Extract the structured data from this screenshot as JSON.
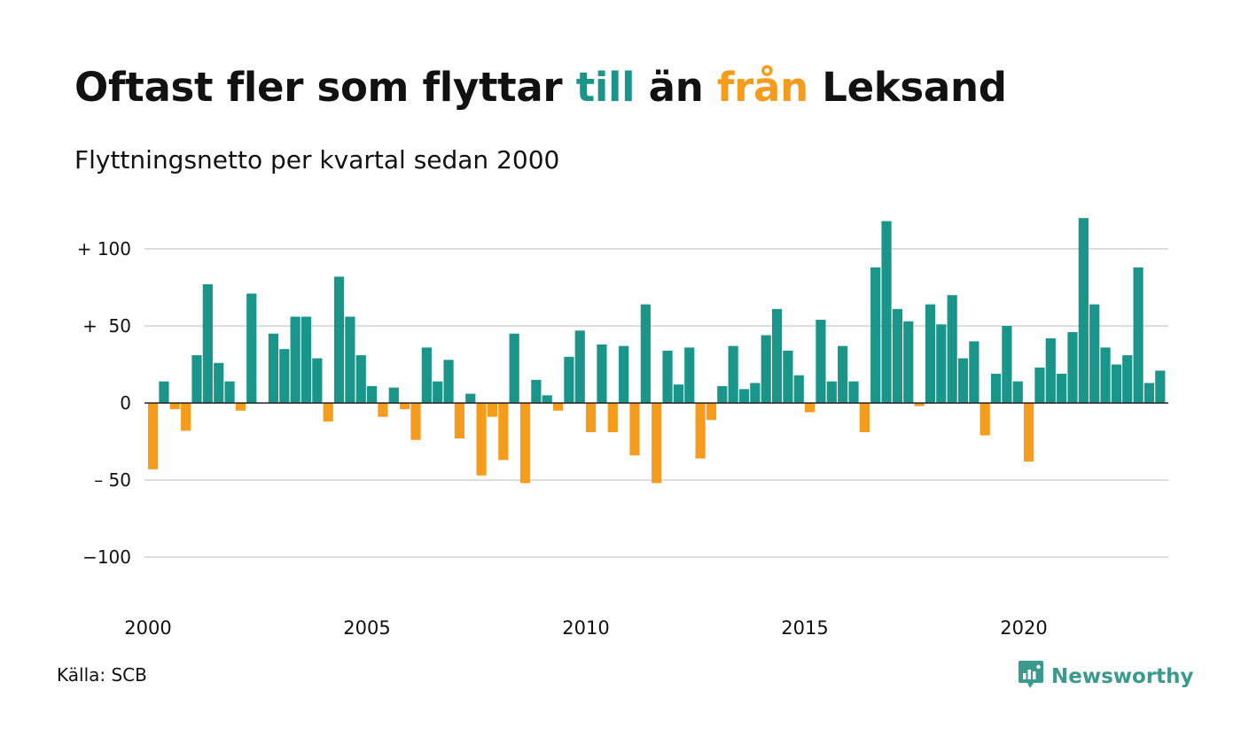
{
  "title": {
    "part1": "Oftast fler som flyttar ",
    "word_in": "till",
    "part2": " än ",
    "word_out": "från",
    "part3": " Leksand"
  },
  "subtitle": "Flyttningsnetto per kvartal sedan 2000",
  "source": "Källa: SCB",
  "brand": {
    "name": "Newsworthy",
    "color": "#3a9a8d",
    "icon": "newsworthy-logo-icon"
  },
  "colors": {
    "positive": "#1a9589",
    "negative": "#f59c1d",
    "grid": "#dddddd",
    "zero_line": "#222222",
    "text": "#111111"
  },
  "chart_data": {
    "type": "bar",
    "title": "Oftast fler som flyttar till än från Leksand",
    "subtitle": "Flyttningsnetto per kvartal sedan 2000",
    "start": "2000 Q1",
    "frequency": "quarterly",
    "x_ticks": [
      "2000",
      "2005",
      "2010",
      "2015",
      "2020"
    ],
    "y_ticks": [
      {
        "value": 100,
        "label": "+ 100"
      },
      {
        "value": 50,
        "label": "+  50"
      },
      {
        "value": 0,
        "label": "0"
      },
      {
        "value": -50,
        "label": "– 50"
      },
      {
        "value": -100,
        "label": "−100"
      }
    ],
    "ylim": [
      -130,
      128
    ],
    "grid": true,
    "legend": "none",
    "values": [
      -43,
      14,
      -4,
      -18,
      31,
      77,
      26,
      14,
      -5,
      71,
      0,
      45,
      35,
      56,
      56,
      29,
      -12,
      82,
      56,
      31,
      11,
      -9,
      10,
      -4,
      -24,
      36,
      14,
      28,
      -23,
      6,
      -47,
      -9,
      -37,
      45,
      -52,
      15,
      5,
      -5,
      30,
      47,
      -19,
      38,
      -19,
      37,
      -34,
      64,
      -52,
      34,
      12,
      36,
      -36,
      -11,
      11,
      37,
      9,
      13,
      44,
      61,
      34,
      18,
      -6,
      54,
      14,
      37,
      14,
      -19,
      88,
      118,
      61,
      53,
      -2,
      64,
      51,
      70,
      29,
      40,
      -21,
      19,
      50,
      14,
      -38,
      23,
      42,
      19,
      46,
      120,
      64,
      36,
      25,
      31,
      88,
      13,
      21
    ]
  }
}
